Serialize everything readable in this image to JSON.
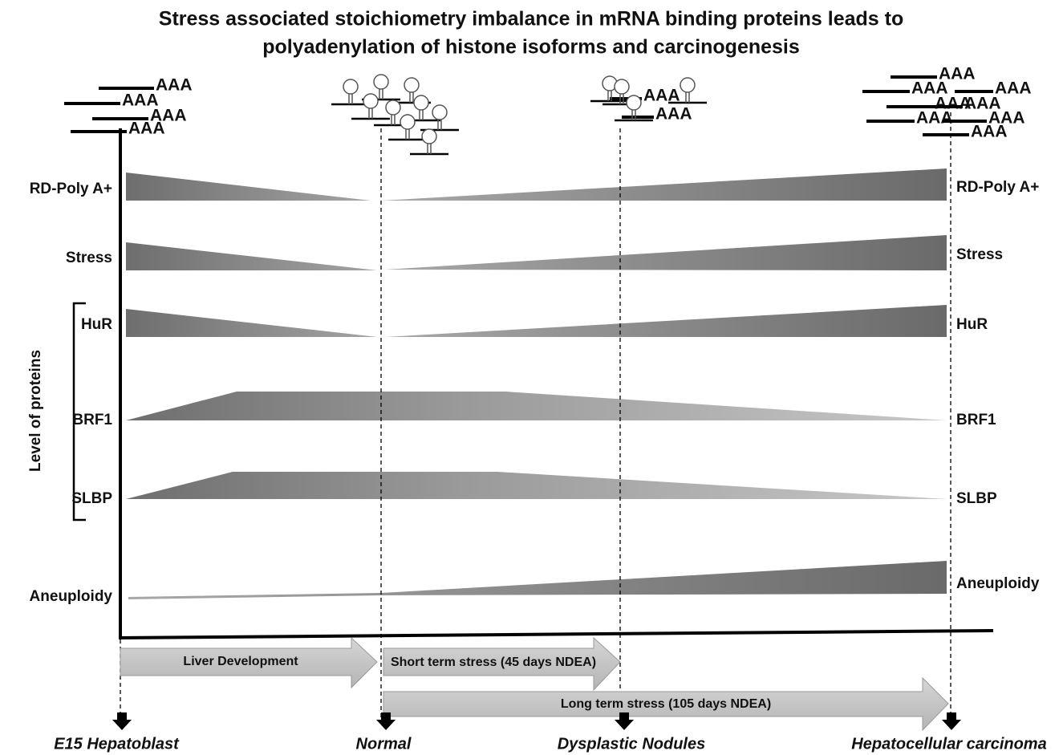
{
  "title": {
    "lines": [
      "Stress associated stoichiometry imbalance in mRNA binding proteins leads to",
      "polyadenylation of histone isoforms and carcinogenesis"
    ]
  },
  "axis_label": "Level of proteins",
  "rows_left": [
    "RD-Poly A+",
    "Stress",
    "HuR",
    "BRF1",
    "SLBP",
    "Aneuploidy"
  ],
  "rows_right": [
    "RD-Poly A+",
    "Stress",
    "HuR",
    "BRF1",
    "SLBP",
    "Aneuploidy"
  ],
  "phases": [
    "Liver Development",
    "Short term stress (45 days NDEA)",
    "Long term stress (105 days NDEA)"
  ],
  "stages": [
    "E15 Hepatoblast",
    "Normal",
    "Dysplastic  Nodules",
    "Hepatocellular  carcinoma"
  ],
  "poly_a_tails": {
    "hepatoblast": [
      "AAA",
      "AAA",
      "AAA",
      "AAA"
    ],
    "dysplastic": [
      "AAA",
      "AAA"
    ],
    "carcinoma": [
      "AAA",
      "AAA",
      "AAA",
      "AAA",
      "AAA",
      "AAA",
      "AAA",
      "AAA"
    ]
  }
}
